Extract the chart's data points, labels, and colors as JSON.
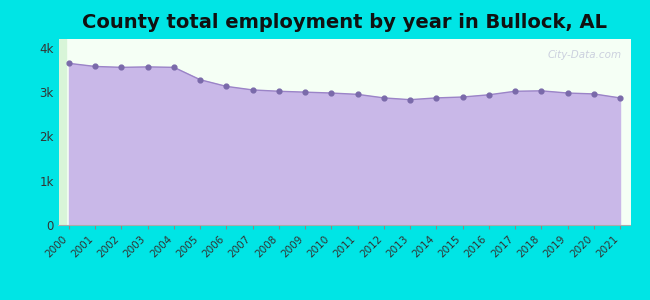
{
  "title": "County total employment by year in Bullock, AL",
  "years": [
    2000,
    2001,
    2002,
    2003,
    2004,
    2005,
    2006,
    2007,
    2008,
    2009,
    2010,
    2011,
    2012,
    2013,
    2014,
    2015,
    2016,
    2017,
    2018,
    2019,
    2020,
    2021
  ],
  "values": [
    3650,
    3580,
    3560,
    3570,
    3560,
    3280,
    3130,
    3050,
    3020,
    3000,
    2980,
    2950,
    2870,
    2830,
    2870,
    2890,
    2940,
    3020,
    3030,
    2980,
    2960,
    2870
  ],
  "line_color": "#9b84c7",
  "fill_color": "#c9b8e8",
  "marker_color": "#7a6aaa",
  "background_color": "#00e5e5",
  "plot_bg_color": "#f5fff5",
  "ytick_labels": [
    "0",
    "1k",
    "2k",
    "3k",
    "4k"
  ],
  "ytick_values": [
    0,
    1000,
    2000,
    3000,
    4000
  ],
  "ylim": [
    0,
    4200
  ],
  "title_fontsize": 14,
  "watermark": "City-Data.com"
}
